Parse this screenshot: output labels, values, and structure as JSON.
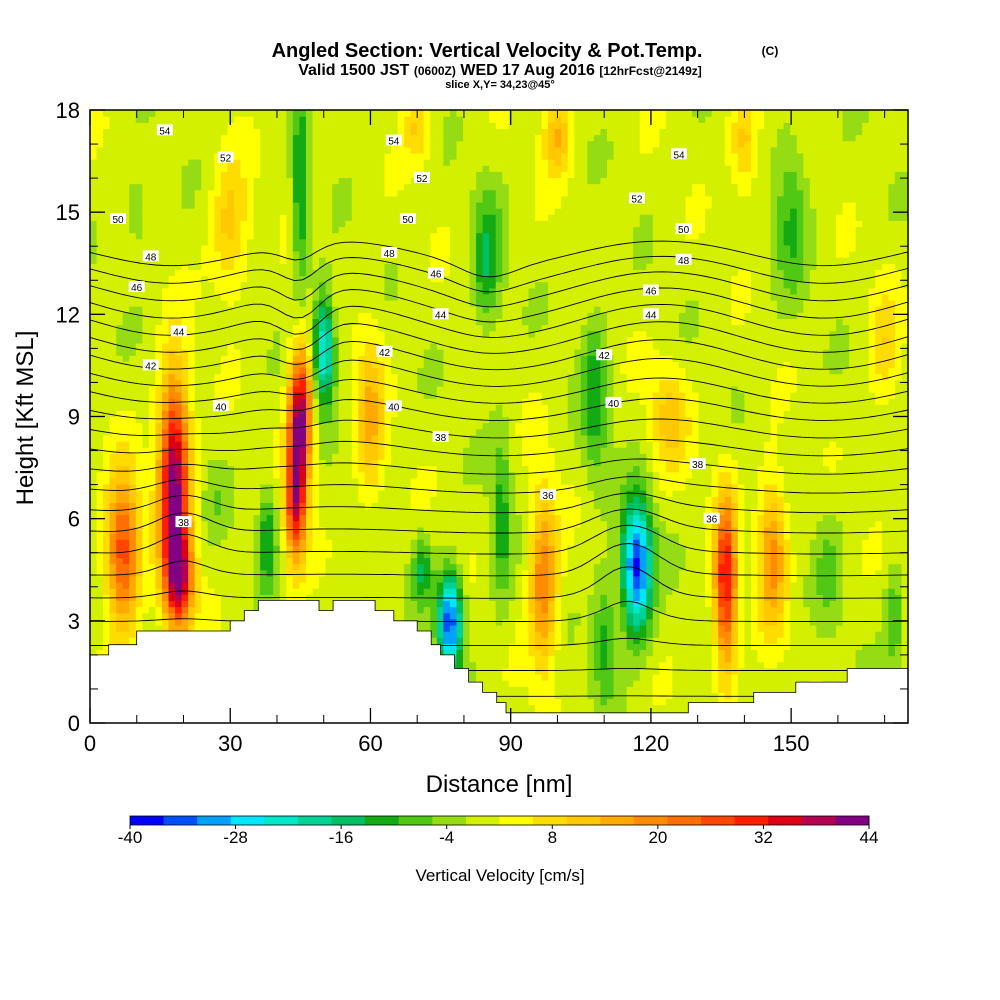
{
  "title": {
    "main": "Angled Section: Vertical Velocity & Pot.Temp.",
    "copyright": "(C)",
    "valid_prefix": "Valid 1500 JST",
    "valid_utc": "(0600Z)",
    "valid_date": "WED 17 Aug 2016",
    "forecast": "[12hrFcst@2149z]",
    "slice": "slice X,Y= 34,23@45°"
  },
  "chart_data": {
    "type": "heatmap",
    "xlabel": "Distance [nm]",
    "ylabel": "Height [Kft MSL]",
    "xlim": [
      0,
      175
    ],
    "ylim": [
      0,
      18
    ],
    "x_ticks": [
      0,
      30,
      60,
      90,
      120,
      150
    ],
    "y_ticks": [
      0,
      3,
      6,
      9,
      12,
      15,
      18
    ],
    "colorbar": {
      "label": "Vertical Velocity [cm/s]",
      "min": -40,
      "max": 44,
      "step": 4,
      "tick_labels": [
        "-40",
        "-28",
        "-16",
        "-4",
        "8",
        "20",
        "32",
        "44"
      ],
      "colors": [
        "#0000ff",
        "#0050ff",
        "#00a0ff",
        "#00e6ff",
        "#00e6c8",
        "#00d296",
        "#00be64",
        "#14aa14",
        "#50c814",
        "#96dc14",
        "#d2f000",
        "#ffff00",
        "#ffdc00",
        "#ffc800",
        "#ffaa00",
        "#ff8c00",
        "#ff6e00",
        "#ff4600",
        "#ff1e00",
        "#dc0014",
        "#b40050",
        "#820082"
      ]
    },
    "terrain_kft": [
      [
        0,
        2.0
      ],
      [
        4,
        2.0
      ],
      [
        4,
        2.3
      ],
      [
        10,
        2.3
      ],
      [
        10,
        2.7
      ],
      [
        30,
        2.7
      ],
      [
        30,
        3.0
      ],
      [
        33,
        3.0
      ],
      [
        33,
        3.3
      ],
      [
        36,
        3.3
      ],
      [
        36,
        3.6
      ],
      [
        49,
        3.6
      ],
      [
        49,
        3.3
      ],
      [
        52,
        3.3
      ],
      [
        52,
        3.6
      ],
      [
        61,
        3.6
      ],
      [
        61,
        3.3
      ],
      [
        65,
        3.3
      ],
      [
        65,
        3.0
      ],
      [
        70,
        3.0
      ],
      [
        70,
        2.7
      ],
      [
        73,
        2.7
      ],
      [
        73,
        2.3
      ],
      [
        75,
        2.3
      ],
      [
        75,
        2.0
      ],
      [
        78,
        2.0
      ],
      [
        78,
        1.6
      ],
      [
        81,
        1.6
      ],
      [
        81,
        1.2
      ],
      [
        84,
        1.2
      ],
      [
        84,
        0.9
      ],
      [
        87,
        0.9
      ],
      [
        87,
        0.6
      ],
      [
        89,
        0.6
      ],
      [
        89,
        0.3
      ],
      [
        128,
        0.3
      ],
      [
        128,
        0.6
      ],
      [
        142,
        0.6
      ],
      [
        142,
        0.9
      ],
      [
        151,
        0.9
      ],
      [
        151,
        1.2
      ],
      [
        162,
        1.2
      ],
      [
        162,
        1.6
      ],
      [
        175,
        1.6
      ]
    ],
    "vertical_velocity_features": [
      {
        "x": 7,
        "y": 5.0,
        "sx": 3.5,
        "sy": 2.2,
        "w": 30
      },
      {
        "x": 18,
        "y": 7.2,
        "sx": 3.2,
        "sy": 3.0,
        "w": 44
      },
      {
        "x": 19,
        "y": 4.2,
        "sx": 3.0,
        "sy": 1.5,
        "w": 34
      },
      {
        "x": 27,
        "y": 6.5,
        "sx": 2.5,
        "sy": 1.2,
        "w": -4
      },
      {
        "x": 38,
        "y": 5.5,
        "sx": 2.0,
        "sy": 1.5,
        "w": -14
      },
      {
        "x": 45,
        "y": 9.0,
        "sx": 2.4,
        "sy": 2.0,
        "w": 42
      },
      {
        "x": 44,
        "y": 6.5,
        "sx": 2.2,
        "sy": 1.8,
        "w": 34
      },
      {
        "x": 50,
        "y": 11.0,
        "sx": 2.3,
        "sy": 1.6,
        "w": -28
      },
      {
        "x": 45,
        "y": 15.5,
        "sx": 1.6,
        "sy": 2.8,
        "w": -16
      },
      {
        "x": 60,
        "y": 9.0,
        "sx": 3.0,
        "sy": 2.5,
        "w": 14
      },
      {
        "x": 77,
        "y": 3.0,
        "sx": 2.6,
        "sy": 1.4,
        "w": -38
      },
      {
        "x": 71,
        "y": 4.5,
        "sx": 2.0,
        "sy": 1.0,
        "w": -14
      },
      {
        "x": 85,
        "y": 13.5,
        "sx": 3.0,
        "sy": 2.0,
        "w": -14
      },
      {
        "x": 88,
        "y": 6.0,
        "sx": 2.2,
        "sy": 2.5,
        "w": -12
      },
      {
        "x": 97,
        "y": 4.2,
        "sx": 3.0,
        "sy": 2.6,
        "w": 22
      },
      {
        "x": 108,
        "y": 9.5,
        "sx": 2.8,
        "sy": 2.5,
        "w": -12
      },
      {
        "x": 110,
        "y": 2.5,
        "sx": 2.5,
        "sy": 1.8,
        "w": -12
      },
      {
        "x": 117,
        "y": 4.6,
        "sx": 3.2,
        "sy": 1.9,
        "w": -40
      },
      {
        "x": 124,
        "y": 9.0,
        "sx": 4.0,
        "sy": 1.5,
        "w": 12
      },
      {
        "x": 136,
        "y": 4.1,
        "sx": 2.4,
        "sy": 2.6,
        "w": 34
      },
      {
        "x": 146,
        "y": 5.0,
        "sx": 3.0,
        "sy": 2.2,
        "w": 20
      },
      {
        "x": 158,
        "y": 4.5,
        "sx": 3.0,
        "sy": 2.0,
        "w": -6
      },
      {
        "x": 172,
        "y": 3.0,
        "sx": 2.0,
        "sy": 1.5,
        "w": -10
      },
      {
        "x": 150,
        "y": 15.0,
        "sx": 3.5,
        "sy": 2.5,
        "w": -10
      },
      {
        "x": 100,
        "y": 17.3,
        "sx": 3.0,
        "sy": 1.2,
        "w": 14
      },
      {
        "x": 70,
        "y": 17.5,
        "sx": 3.0,
        "sy": 1.0,
        "w": 10
      },
      {
        "x": 30,
        "y": 14.5,
        "sx": 4.0,
        "sy": 2.0,
        "w": 12
      },
      {
        "x": 10,
        "y": 15.0,
        "sx": 2.0,
        "sy": 1.0,
        "w": -8
      },
      {
        "x": 140,
        "y": 17.0,
        "sx": 3.0,
        "sy": 1.5,
        "w": 12
      },
      {
        "x": 170,
        "y": 11.0,
        "sx": 3.0,
        "sy": 2.0,
        "w": 8
      }
    ],
    "theta_contours_K": [
      38,
      40,
      42,
      44,
      46,
      48,
      50,
      52,
      54
    ],
    "theta_contour_labels": [
      {
        "text": "54",
        "x": 16,
        "y": 17.4
      },
      {
        "text": "52",
        "x": 29,
        "y": 16.6
      },
      {
        "text": "50",
        "x": 6,
        "y": 14.8
      },
      {
        "text": "48",
        "x": 13,
        "y": 13.7
      },
      {
        "text": "46",
        "x": 10,
        "y": 12.8
      },
      {
        "text": "44",
        "x": 19,
        "y": 11.5
      },
      {
        "text": "42",
        "x": 13,
        "y": 10.5
      },
      {
        "text": "40",
        "x": 28,
        "y": 9.3
      },
      {
        "text": "38",
        "x": 20,
        "y": 5.9
      },
      {
        "text": "54",
        "x": 65,
        "y": 17.1
      },
      {
        "text": "52",
        "x": 71,
        "y": 16.0
      },
      {
        "text": "50",
        "x": 68,
        "y": 14.8
      },
      {
        "text": "48",
        "x": 64,
        "y": 13.8
      },
      {
        "text": "46",
        "x": 74,
        "y": 13.2
      },
      {
        "text": "44",
        "x": 75,
        "y": 12.0
      },
      {
        "text": "42",
        "x": 63,
        "y": 10.9
      },
      {
        "text": "40",
        "x": 65,
        "y": 9.3
      },
      {
        "text": "38",
        "x": 75,
        "y": 8.4
      },
      {
        "text": "36",
        "x": 98,
        "y": 6.7
      },
      {
        "text": "54",
        "x": 126,
        "y": 16.7
      },
      {
        "text": "52",
        "x": 117,
        "y": 15.4
      },
      {
        "text": "50",
        "x": 127,
        "y": 14.5
      },
      {
        "text": "48",
        "x": 127,
        "y": 13.6
      },
      {
        "text": "46",
        "x": 120,
        "y": 12.7
      },
      {
        "text": "44",
        "x": 120,
        "y": 12.0
      },
      {
        "text": "42",
        "x": 110,
        "y": 10.8
      },
      {
        "text": "40",
        "x": 112,
        "y": 9.4
      },
      {
        "text": "38",
        "x": 130,
        "y": 7.6
      },
      {
        "text": "36",
        "x": 133,
        "y": 6.0
      }
    ]
  }
}
